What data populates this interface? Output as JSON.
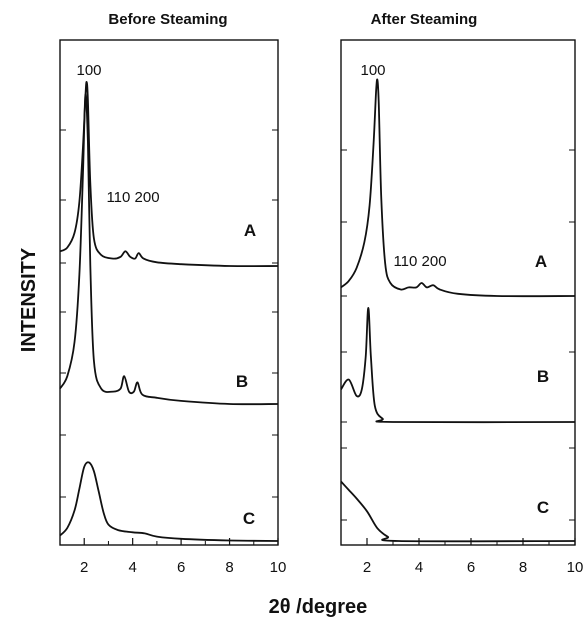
{
  "figure": {
    "ylabel": "INTENSITY",
    "xlabel": "2θ /degree"
  },
  "chart_data": [
    {
      "type": "line",
      "title": "Before Steaming",
      "xlim": [
        1,
        10
      ],
      "xticks": [
        2,
        4,
        6,
        8,
        10
      ],
      "peak_labels": [
        "100",
        "110 200"
      ],
      "series": [
        {
          "name": "A",
          "points": [
            [
              1.0,
              0.08
            ],
            [
              1.3,
              0.1
            ],
            [
              1.6,
              0.18
            ],
            [
              1.8,
              0.35
            ],
            [
              1.95,
              0.65
            ],
            [
              2.05,
              0.92
            ],
            [
              2.1,
              1.0
            ],
            [
              2.15,
              0.9
            ],
            [
              2.25,
              0.45
            ],
            [
              2.4,
              0.15
            ],
            [
              2.7,
              0.06
            ],
            [
              3.2,
              0.04
            ],
            [
              3.5,
              0.05
            ],
            [
              3.7,
              0.08
            ],
            [
              3.9,
              0.05
            ],
            [
              4.1,
              0.04
            ],
            [
              4.25,
              0.07
            ],
            [
              4.45,
              0.04
            ],
            [
              5.0,
              0.02
            ],
            [
              6.0,
              0.01
            ],
            [
              8.0,
              0.0
            ],
            [
              10.0,
              0.0
            ]
          ]
        },
        {
          "name": "B",
          "points": [
            [
              1.0,
              0.05
            ],
            [
              1.3,
              0.09
            ],
            [
              1.6,
              0.2
            ],
            [
              1.8,
              0.42
            ],
            [
              1.95,
              0.75
            ],
            [
              2.05,
              1.0
            ],
            [
              2.15,
              0.85
            ],
            [
              2.25,
              0.45
            ],
            [
              2.4,
              0.14
            ],
            [
              2.7,
              0.05
            ],
            [
              3.2,
              0.04
            ],
            [
              3.5,
              0.05
            ],
            [
              3.65,
              0.09
            ],
            [
              3.85,
              0.04
            ],
            [
              4.05,
              0.04
            ],
            [
              4.2,
              0.07
            ],
            [
              4.4,
              0.03
            ],
            [
              5.0,
              0.02
            ],
            [
              6.0,
              0.01
            ],
            [
              8.0,
              0.0
            ],
            [
              10.0,
              0.0
            ]
          ]
        },
        {
          "name": "C",
          "points": [
            [
              1.0,
              0.05
            ],
            [
              1.3,
              0.12
            ],
            [
              1.6,
              0.28
            ],
            [
              1.8,
              0.48
            ],
            [
              2.0,
              0.68
            ],
            [
              2.2,
              0.72
            ],
            [
              2.4,
              0.64
            ],
            [
              2.6,
              0.45
            ],
            [
              2.8,
              0.26
            ],
            [
              3.0,
              0.15
            ],
            [
              3.4,
              0.1
            ],
            [
              4.0,
              0.08
            ],
            [
              4.5,
              0.07
            ],
            [
              5.0,
              0.04
            ],
            [
              6.0,
              0.02
            ],
            [
              8.0,
              0.005
            ],
            [
              10.0,
              0.0
            ]
          ]
        }
      ]
    },
    {
      "type": "line",
      "title": "After Steaming",
      "xlim": [
        1,
        10
      ],
      "xticks": [
        2,
        4,
        6,
        8,
        10
      ],
      "peak_labels": [
        "100",
        "110 200"
      ],
      "series": [
        {
          "name": "A",
          "points": [
            [
              1.0,
              0.04
            ],
            [
              1.3,
              0.07
            ],
            [
              1.6,
              0.13
            ],
            [
              1.9,
              0.25
            ],
            [
              2.1,
              0.42
            ],
            [
              2.25,
              0.7
            ],
            [
              2.35,
              0.95
            ],
            [
              2.4,
              1.0
            ],
            [
              2.45,
              0.9
            ],
            [
              2.55,
              0.45
            ],
            [
              2.7,
              0.15
            ],
            [
              2.9,
              0.06
            ],
            [
              3.3,
              0.03
            ],
            [
              3.6,
              0.04
            ],
            [
              3.9,
              0.04
            ],
            [
              4.1,
              0.06
            ],
            [
              4.3,
              0.04
            ],
            [
              4.55,
              0.05
            ],
            [
              4.8,
              0.03
            ],
            [
              5.5,
              0.01
            ],
            [
              7.0,
              0.0
            ],
            [
              10.0,
              0.0
            ]
          ]
        },
        {
          "name": "B",
          "points": [
            [
              1.0,
              0.1
            ],
            [
              1.3,
              0.13
            ],
            [
              1.6,
              0.08
            ],
            [
              1.8,
              0.1
            ],
            [
              1.95,
              0.2
            ],
            [
              2.05,
              0.35
            ],
            [
              2.15,
              0.2
            ],
            [
              2.3,
              0.05
            ],
            [
              2.6,
              0.01
            ],
            [
              3.0,
              0.0
            ],
            [
              10.0,
              0.0
            ]
          ]
        },
        {
          "name": "C",
          "points": [
            [
              1.0,
              0.14
            ],
            [
              1.3,
              0.12
            ],
            [
              1.6,
              0.1
            ],
            [
              2.0,
              0.07
            ],
            [
              2.4,
              0.03
            ],
            [
              2.8,
              0.01
            ],
            [
              3.2,
              0.0
            ],
            [
              10.0,
              0.0
            ]
          ]
        }
      ]
    }
  ]
}
